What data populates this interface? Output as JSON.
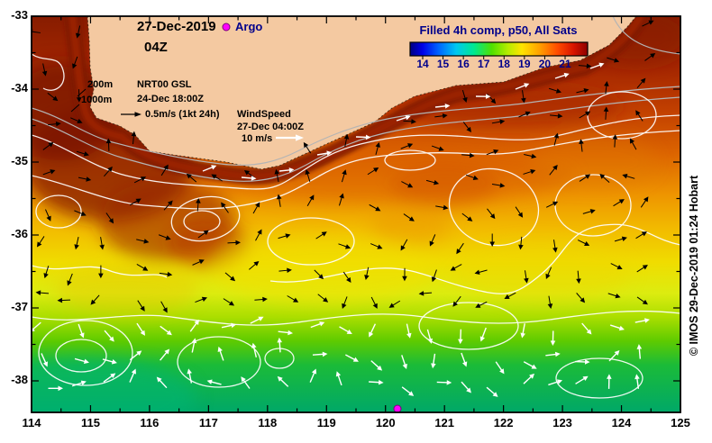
{
  "header": {
    "date": "27-Dec-2019",
    "hour": "04Z",
    "argo_label": "Argo"
  },
  "colorbar": {
    "title": "Filled 4h comp, p50, All Sats",
    "ticks": [
      "14",
      "15",
      "16",
      "17",
      "18",
      "19",
      "20",
      "21"
    ]
  },
  "legends": {
    "bathy_200": "200m",
    "bathy_1000": "1000m",
    "gsl_name": "NRT00 GSL",
    "gsl_time": "24-Dec 18:00Z",
    "gsl_scale": "0.5m/s (1kt 24h)",
    "wind_name": "WindSpeed",
    "wind_time": "27-Dec 04:00Z",
    "wind_scale": "10 m/s"
  },
  "credit": "© IMOS 29-Dec-2019 01:24 Hobart",
  "axes": {
    "x_ticks": [
      "114",
      "115",
      "116",
      "117",
      "118",
      "119",
      "120",
      "121",
      "122",
      "123",
      "124",
      "125"
    ],
    "y_ticks": [
      "-33",
      "-34",
      "-35",
      "-36",
      "-37",
      "-38"
    ]
  },
  "colors": {
    "accent_navy": "#00008B",
    "argo_magenta": "#FF00FF",
    "land_tan": "#F4C9A1"
  },
  "chart_data": {
    "type": "heatmap",
    "title": "Filled 4h comp, p50, All Sats",
    "region": {
      "lon_min": 114,
      "lon_max": 125,
      "lat_min": -38.45,
      "lat_max": -33
    },
    "x_ticks": [
      114,
      115,
      116,
      117,
      118,
      119,
      120,
      121,
      122,
      123,
      124,
      125
    ],
    "y_ticks": [
      -33,
      -34,
      -35,
      -36,
      -37,
      -38
    ],
    "colorbar_ticks": [
      14,
      15,
      16,
      17,
      18,
      19,
      20,
      21
    ],
    "sst_profile_by_latitude": [
      {
        "lat": -33.2,
        "sst": 21.8
      },
      {
        "lat": -34.0,
        "sst": 21.0
      },
      {
        "lat": -35.0,
        "sst": 20.0
      },
      {
        "lat": -36.0,
        "sst": 19.2
      },
      {
        "lat": -36.8,
        "sst": 18.6
      },
      {
        "lat": -37.4,
        "sst": 17.5
      },
      {
        "lat": -38.0,
        "sst": 16.8
      },
      {
        "lat": -38.4,
        "sst": 16.2
      }
    ],
    "overlays": [
      "black arrows: NRT00 GSL geostrophic current vectors, 24-Dec 18:00Z, scale 0.5m/s (1kt 24h)",
      "white arrows: WindSpeed vectors, 27-Dec 04:00Z, scale 10 m/s",
      "white contours: SST composite contours",
      "gray contours: 200m and 1000m bathymetry"
    ],
    "markers": [
      {
        "name": "Argo float",
        "lon": 120.2,
        "lat": -38.39,
        "color": "#FF00FF"
      }
    ]
  }
}
